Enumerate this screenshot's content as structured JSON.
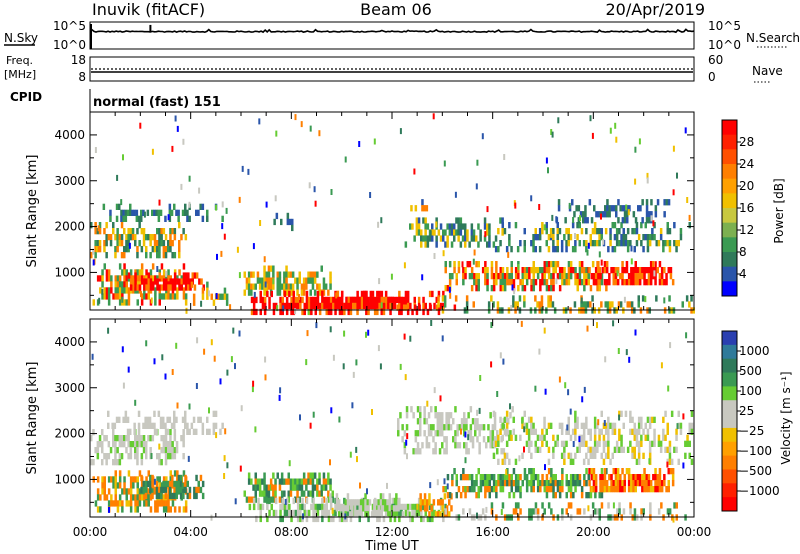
{
  "header": {
    "station": "Inuvik (fitACF)",
    "beam": "Beam 06",
    "date": "20/Apr/2019"
  },
  "left_labels": {
    "nsky": "N.Sky",
    "freq": "Freq.",
    "freq_unit": "[MHz]",
    "cpid": "CPID"
  },
  "right_labels": {
    "nsearch": "N.Search",
    "nave": "Nave"
  },
  "cpid_text": "normal (fast) 151",
  "colors": {
    "red": "#ff0000",
    "orange": "#ff7f00",
    "gold": "#f0c000",
    "lightgreen": "#66cc33",
    "green": "#3a9a52",
    "darkgreen": "#2f7a5a",
    "blue": "#2a55aa",
    "deepblue": "#0000ff",
    "gray": "#c8c8c0"
  },
  "chart_data": [
    {
      "type": "line",
      "name": "noise",
      "left_ticks": [
        "10^5",
        "10^0"
      ],
      "right_ticks": [
        "10^5",
        "10^0"
      ],
      "left_label": "N.Sky",
      "right_label": "N.Search",
      "x": [
        0,
        2.3,
        2.4,
        6,
        12,
        18,
        24
      ],
      "y_log": [
        3.3,
        3.3,
        4.8,
        3.4,
        3.4,
        3.5,
        3.3
      ]
    },
    {
      "type": "line",
      "name": "frequency",
      "left_ticks": [
        "18",
        "8"
      ],
      "right_ticks": [
        "60",
        "0"
      ],
      "left_label": "Freq. [MHz]",
      "right_label": "Nave",
      "freq_mhz": 10.8,
      "nave": 22
    },
    {
      "type": "heatmap",
      "name": "power",
      "ylabel": "Slant Range [km]",
      "y_ticks": [
        "4000",
        "3000",
        "2000",
        "1000"
      ],
      "y_tick_values": [
        4000,
        3000,
        2000,
        1000
      ],
      "ylim": [
        180,
        4500
      ],
      "xlim": [
        0,
        24
      ],
      "colorbar_label": "Power [dB]",
      "colorbar_ticks": [
        "28",
        "24",
        "20",
        "16",
        "12",
        "8",
        "4"
      ],
      "colorbar_values": [
        28,
        24,
        20,
        16,
        12,
        8,
        4
      ]
    },
    {
      "type": "heatmap",
      "name": "velocity",
      "ylabel": "Slant Range [km]",
      "y_ticks": [
        "4000",
        "3000",
        "2000",
        "1000"
      ],
      "y_tick_values": [
        4000,
        3000,
        2000,
        1000
      ],
      "ylim": [
        180,
        4500
      ],
      "xlim": [
        0,
        24
      ],
      "xlabel": "Time UT",
      "x_ticks": [
        "00:00",
        "04:00",
        "08:00",
        "12:00",
        "16:00",
        "20:00",
        "00:00"
      ],
      "x_tick_values": [
        0,
        4,
        8,
        12,
        16,
        20,
        24
      ],
      "colorbar_label": "Velocity [m s⁻¹]",
      "colorbar_ticks": [
        "1000",
        "500",
        "100",
        "25",
        "−25",
        "−100",
        "−500",
        "−1000"
      ],
      "colorbar_values": [
        1000,
        500,
        100,
        25,
        -25,
        -100,
        -500,
        -1000
      ]
    }
  ]
}
